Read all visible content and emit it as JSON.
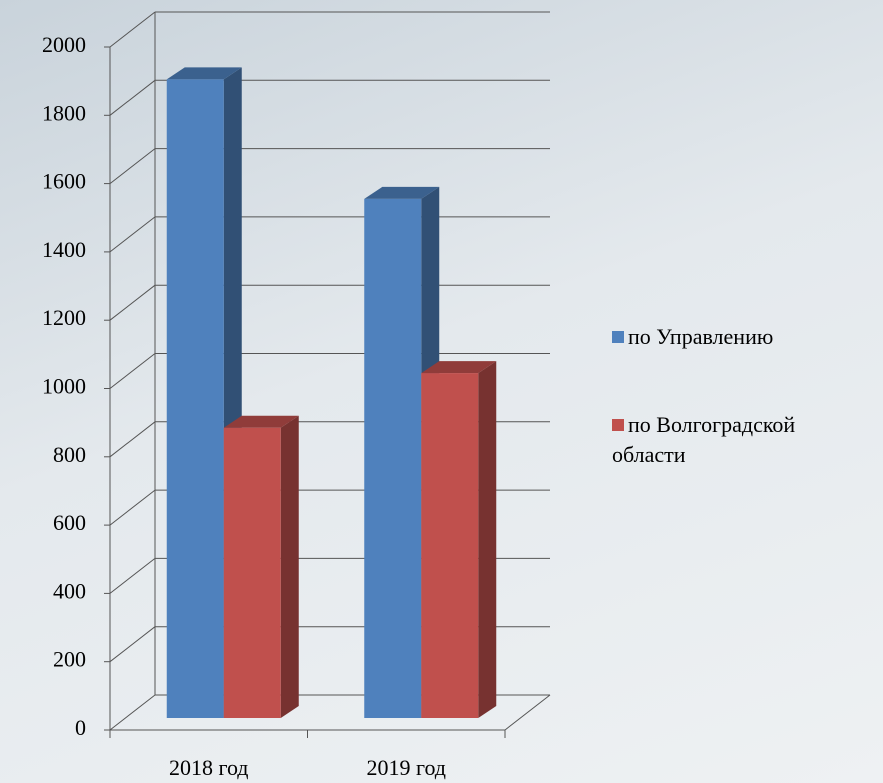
{
  "chart_data": {
    "type": "bar3d",
    "categories": [
      "2018 год",
      "2019 год"
    ],
    "series": [
      {
        "name": "по Управлению",
        "color": "#4f81bd",
        "values": [
          1870,
          1520
        ]
      },
      {
        "name": "по Волгоградской области",
        "color": "#c0504d",
        "values": [
          850,
          1010
        ]
      }
    ],
    "ylim": [
      0,
      2000
    ],
    "yticks": [
      0,
      200,
      400,
      600,
      800,
      1000,
      1200,
      1400,
      1600,
      1800,
      2000
    ],
    "grid": true,
    "legend": "right"
  }
}
